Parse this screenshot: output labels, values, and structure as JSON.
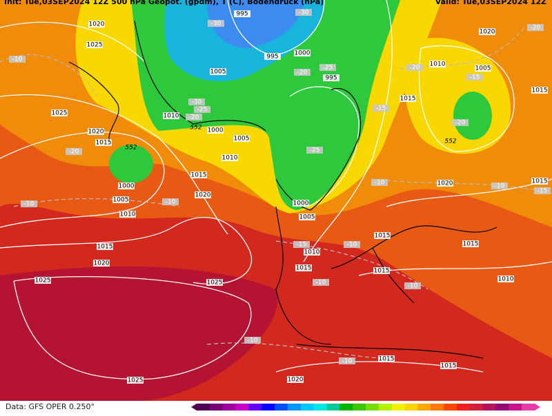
{
  "header": {
    "left": "Init: Tue,03SEP2024 12Z  500 hPa Geopot. (gpdm), T (C), Bodendruck (hPa)",
    "right": "Valid: Tue,03SEP2024 12Z"
  },
  "pressure_labels": [
    "1020",
    "1025",
    "1025",
    "1020",
    "1015",
    "1010",
    "1000",
    "1005",
    "1010",
    "1015",
    "1020",
    "1000",
    "1005",
    "1010",
    "1015",
    "1020",
    "1025",
    "1025",
    "1025",
    "995",
    "995",
    "1000",
    "1005",
    "995",
    "1000",
    "1005",
    "1010",
    "1015",
    "1015",
    "1015",
    "1015",
    "1010",
    "1005",
    "1020",
    "1015",
    "1020",
    "1015",
    "1015",
    "1010",
    "1015",
    "1015",
    "1020"
  ],
  "temperature_labels": [
    "-10",
    "-10",
    "-20",
    "-10",
    "-30",
    "-20",
    "-25",
    "-30",
    "-25",
    "-20",
    "-25",
    "-15",
    "-20",
    "-15",
    "-20",
    "-10",
    "-10",
    "-10",
    "-15",
    "-10",
    "-10",
    "-10",
    "-10",
    "-15",
    "-20",
    "-30"
  ],
  "geopotential_labels": [
    "552",
    "552",
    "552"
  ],
  "footer": "Data: GFS OPER 0.250°"
}
